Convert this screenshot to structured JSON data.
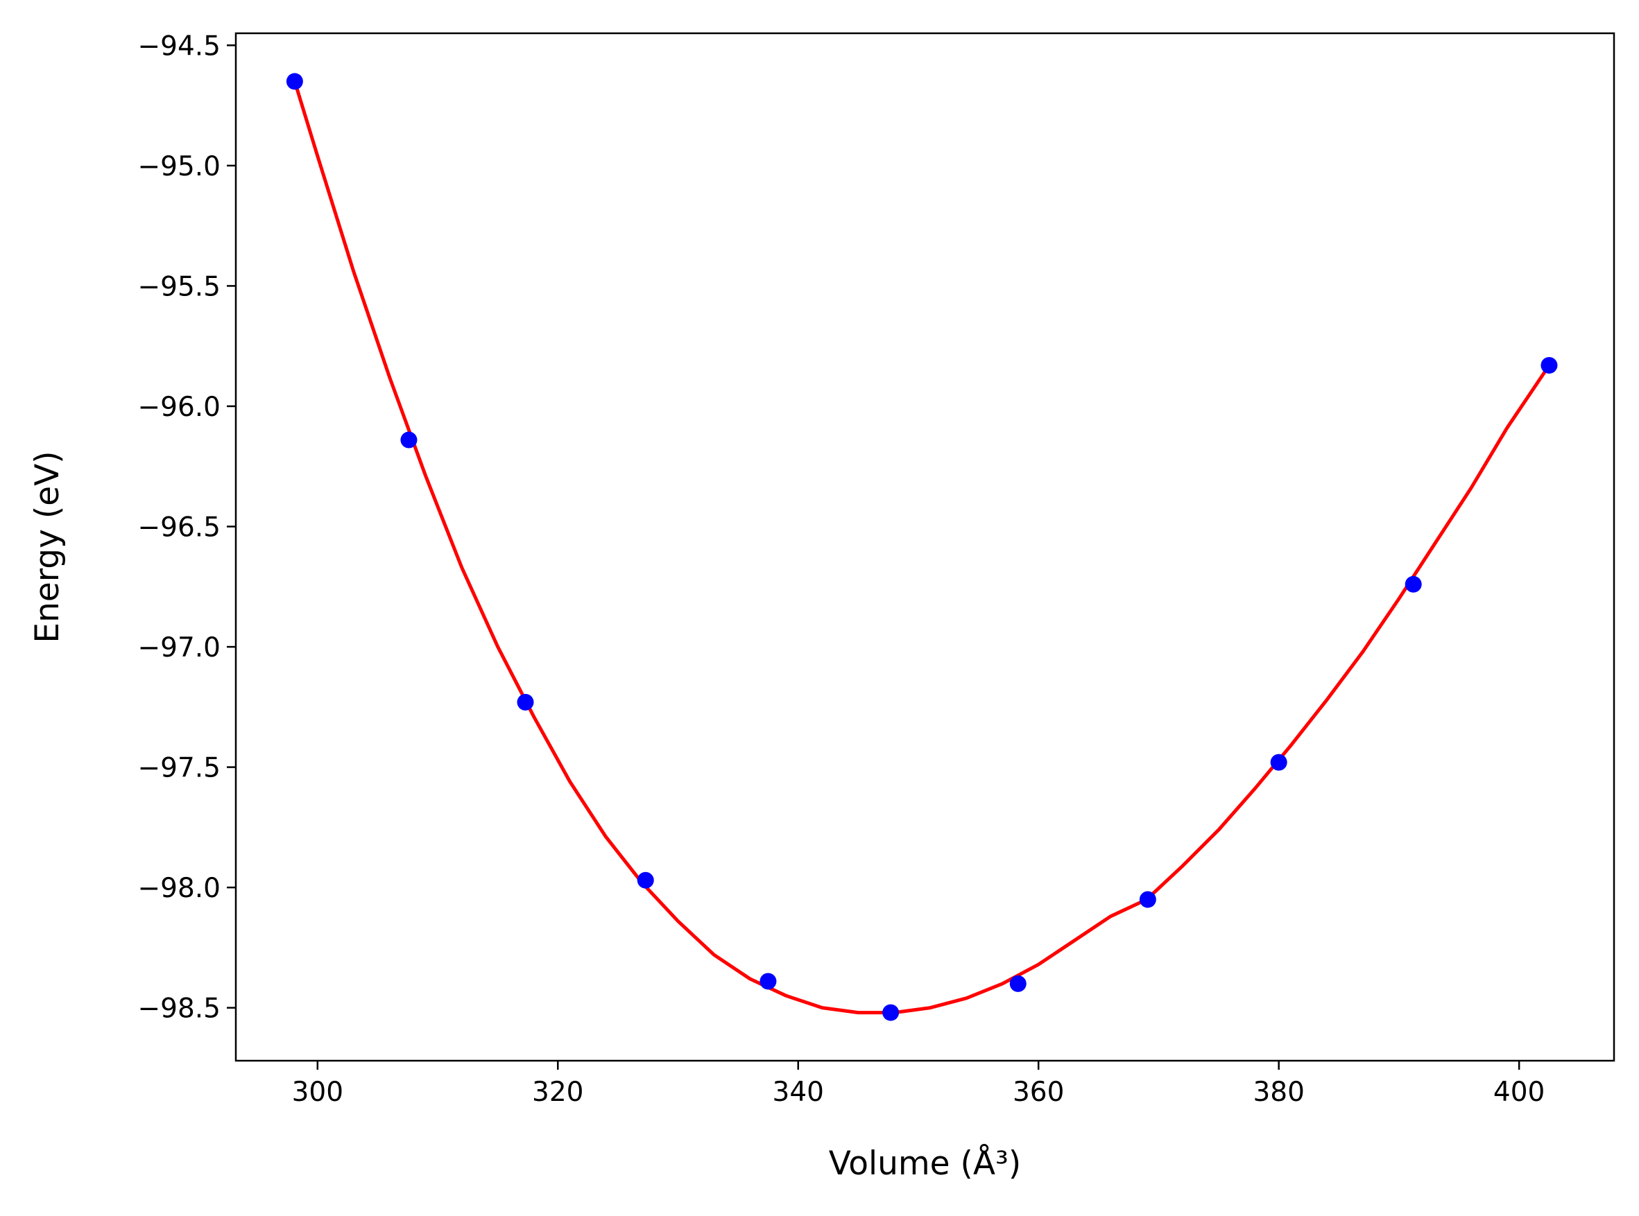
{
  "chart_data": {
    "type": "scatter",
    "title": "",
    "xlabel": "Volume (Å³)",
    "ylabel": "Energy (eV)",
    "xlim": [
      293.2,
      407.9
    ],
    "ylim": [
      -98.72,
      -94.45
    ],
    "x_ticks": [
      300,
      320,
      340,
      360,
      380,
      400
    ],
    "y_ticks": [
      -94.5,
      -95.0,
      -95.5,
      -96.0,
      -96.5,
      -97.0,
      -97.5,
      -98.0,
      -98.5
    ],
    "x_tick_labels": [
      "300",
      "320",
      "340",
      "360",
      "380",
      "400"
    ],
    "y_tick_labels": [
      "−94.5",
      "−95.0",
      "−95.5",
      "−96.0",
      "−96.5",
      "−97.0",
      "−97.5",
      "−98.0",
      "−98.5"
    ],
    "grid": false,
    "series": [
      {
        "kind": "points",
        "color": "#0000ff",
        "x": [
          298.1,
          307.6,
          317.3,
          327.3,
          337.5,
          347.7,
          358.3,
          369.1,
          380.0,
          391.2,
          402.5
        ],
        "y": [
          -94.65,
          -96.14,
          -97.23,
          -97.97,
          -98.39,
          -98.52,
          -98.4,
          -98.05,
          -97.48,
          -96.74,
          -95.83
        ]
      },
      {
        "kind": "fit-curve",
        "color": "#ff0000",
        "x": [
          298.1,
          300,
          303,
          306,
          309,
          312,
          315,
          318,
          321,
          324,
          327,
          330,
          333,
          336,
          339,
          342,
          345,
          348,
          351,
          354,
          357,
          360,
          363,
          366,
          369,
          372,
          375,
          378,
          381,
          384,
          387,
          390,
          393,
          396,
          399,
          402.5
        ],
        "y": [
          -94.65,
          -94.96,
          -95.44,
          -95.88,
          -96.29,
          -96.67,
          -97.0,
          -97.29,
          -97.56,
          -97.79,
          -97.98,
          -98.14,
          -98.28,
          -98.38,
          -98.45,
          -98.5,
          -98.52,
          -98.52,
          -98.5,
          -98.46,
          -98.4,
          -98.32,
          -98.22,
          -98.12,
          -98.05,
          -97.91,
          -97.76,
          -97.59,
          -97.41,
          -97.22,
          -97.02,
          -96.8,
          -96.57,
          -96.34,
          -96.09,
          -95.83
        ]
      }
    ]
  }
}
